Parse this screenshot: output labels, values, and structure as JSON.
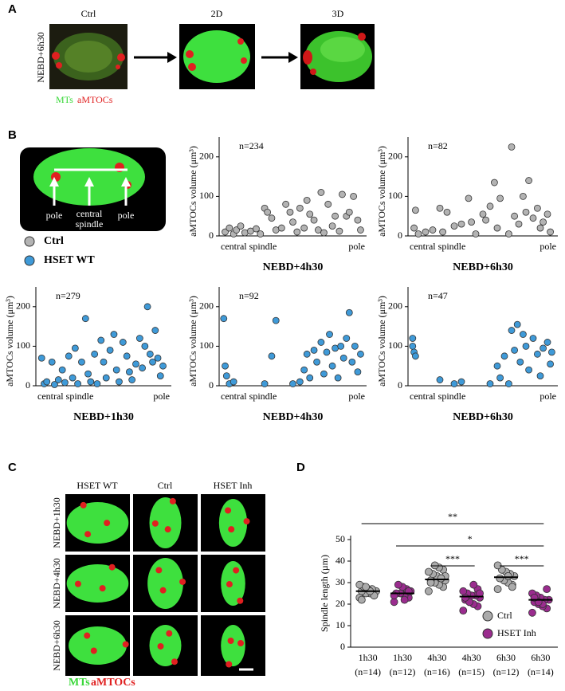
{
  "panels": {
    "a": "A",
    "b": "B",
    "c": "C",
    "d": "D"
  },
  "panel_a": {
    "row_label": "NEBD+6h30",
    "columns": [
      "Ctrl",
      "2D",
      "3D"
    ],
    "legend": [
      "MTs",
      "aMTOCs"
    ]
  },
  "panel_b_schematic": {
    "labels": [
      "pole",
      "central",
      "spindle",
      "pole"
    ]
  },
  "panel_b_legend": [
    {
      "name": "Ctrl",
      "color": "#b3b3b3"
    },
    {
      "name": "HSET WT",
      "color": "#3f9ad8"
    }
  ],
  "chart_data": [
    {
      "type": "scatter",
      "title": "NEBD+4h30",
      "annotation": "n=234",
      "y_label": "aMTOCs volume (μm³)",
      "x_labels": [
        "central spindle",
        "pole"
      ],
      "color": "#b3b3b3",
      "x": [
        0.02,
        0.05,
        0.08,
        0.1,
        0.13,
        0.16,
        0.2,
        0.24,
        0.27,
        0.3,
        0.32,
        0.35,
        0.38,
        0.42,
        0.45,
        0.48,
        0.5,
        0.53,
        0.55,
        0.58,
        0.6,
        0.62,
        0.65,
        0.68,
        0.7,
        0.72,
        0.75,
        0.78,
        0.8,
        0.83,
        0.85,
        0.88,
        0.9,
        0.93,
        0.96,
        0.98
      ],
      "y": [
        10,
        20,
        5,
        15,
        25,
        8,
        12,
        18,
        5,
        70,
        60,
        45,
        15,
        20,
        80,
        60,
        35,
        10,
        70,
        20,
        90,
        55,
        40,
        15,
        110,
        8,
        80,
        25,
        50,
        12,
        105,
        50,
        60,
        100,
        40,
        15
      ],
      "xlim": [
        0,
        1
      ],
      "ylim": [
        0,
        250
      ],
      "yticks": [
        0,
        100,
        200
      ]
    },
    {
      "type": "scatter",
      "title": "NEBD+6h30",
      "annotation": "n=82",
      "y_label": "aMTOCs volume (μm³)",
      "x_labels": [
        "central spindle",
        "pole"
      ],
      "color": "#b3b3b3",
      "x": [
        0.02,
        0.03,
        0.05,
        0.1,
        0.15,
        0.2,
        0.22,
        0.25,
        0.3,
        0.35,
        0.4,
        0.42,
        0.45,
        0.5,
        0.52,
        0.55,
        0.58,
        0.6,
        0.62,
        0.68,
        0.7,
        0.72,
        0.75,
        0.78,
        0.8,
        0.82,
        0.85,
        0.88,
        0.9,
        0.92,
        0.95,
        0.97
      ],
      "y": [
        20,
        65,
        5,
        10,
        15,
        70,
        10,
        60,
        25,
        30,
        95,
        35,
        5,
        55,
        40,
        75,
        135,
        20,
        95,
        5,
        225,
        50,
        30,
        100,
        60,
        140,
        45,
        70,
        20,
        35,
        55,
        10
      ],
      "xlim": [
        0,
        1
      ],
      "ylim": [
        0,
        250
      ],
      "yticks": [
        0,
        100,
        200
      ]
    },
    {
      "type": "scatter",
      "title": "NEBD+1h30",
      "annotation": "n=279",
      "y_label": "aMTOCs volume (μm³)",
      "x_labels": [
        "central spindle",
        "pole"
      ],
      "color": "#3f9ad8",
      "x": [
        0.02,
        0.04,
        0.06,
        0.1,
        0.12,
        0.15,
        0.18,
        0.2,
        0.23,
        0.26,
        0.28,
        0.3,
        0.33,
        0.36,
        0.38,
        0.4,
        0.43,
        0.45,
        0.48,
        0.5,
        0.52,
        0.55,
        0.58,
        0.6,
        0.62,
        0.65,
        0.68,
        0.7,
        0.72,
        0.75,
        0.78,
        0.8,
        0.82,
        0.84,
        0.86,
        0.88,
        0.9,
        0.92,
        0.94,
        0.96
      ],
      "y": [
        70,
        5,
        10,
        60,
        3,
        15,
        40,
        8,
        75,
        20,
        95,
        5,
        60,
        170,
        30,
        10,
        80,
        5,
        115,
        60,
        20,
        90,
        130,
        40,
        10,
        110,
        75,
        35,
        15,
        55,
        120,
        45,
        100,
        200,
        80,
        60,
        140,
        70,
        25,
        50
      ],
      "xlim": [
        0,
        1
      ],
      "ylim": [
        0,
        250
      ],
      "yticks": [
        0,
        100,
        200
      ]
    },
    {
      "type": "scatter",
      "title": "NEBD+4h30",
      "annotation": "n=92",
      "y_label": "aMTOCs volume (μm³)",
      "x_labels": [
        "central spindle",
        "pole"
      ],
      "color": "#3f9ad8",
      "x": [
        0.01,
        0.02,
        0.03,
        0.05,
        0.08,
        0.3,
        0.35,
        0.38,
        0.5,
        0.55,
        0.58,
        0.6,
        0.62,
        0.65,
        0.67,
        0.7,
        0.72,
        0.74,
        0.76,
        0.78,
        0.8,
        0.82,
        0.84,
        0.86,
        0.88,
        0.9,
        0.92,
        0.94,
        0.96,
        0.98
      ],
      "y": [
        170,
        50,
        25,
        5,
        10,
        5,
        75,
        165,
        5,
        10,
        40,
        80,
        20,
        90,
        60,
        110,
        30,
        85,
        130,
        50,
        95,
        20,
        100,
        70,
        120,
        185,
        60,
        100,
        35,
        80
      ],
      "xlim": [
        0,
        1
      ],
      "ylim": [
        0,
        250
      ],
      "yticks": [
        0,
        100,
        200
      ]
    },
    {
      "type": "scatter",
      "title": "NEBD+6h30",
      "annotation": "n=47",
      "y_label": "aMTOCs volume (μm³)",
      "x_labels": [
        "central spindle",
        "pole"
      ],
      "color": "#3f9ad8",
      "x": [
        0.01,
        0.01,
        0.02,
        0.03,
        0.2,
        0.3,
        0.35,
        0.55,
        0.6,
        0.62,
        0.65,
        0.68,
        0.7,
        0.72,
        0.74,
        0.76,
        0.78,
        0.8,
        0.82,
        0.85,
        0.88,
        0.9,
        0.92,
        0.95,
        0.97,
        0.98
      ],
      "y": [
        120,
        100,
        85,
        75,
        15,
        5,
        10,
        5,
        50,
        20,
        75,
        5,
        140,
        90,
        155,
        60,
        130,
        100,
        40,
        120,
        80,
        25,
        95,
        110,
        55,
        85
      ],
      "xlim": [
        0,
        1
      ],
      "ylim": [
        0,
        250
      ],
      "yticks": [
        0,
        100,
        200
      ]
    },
    {
      "type": "strip",
      "y_label": "Spindle length (µm)",
      "categories": [
        "1h30",
        "1h30",
        "4h30",
        "4h30",
        "6h30",
        "6h30"
      ],
      "category_notes": [
        "(n=14)",
        "(n=12)",
        "(n=16)",
        "(n=15)",
        "(n=12)",
        "(n=14)"
      ],
      "series": [
        {
          "name": "Ctrl",
          "color": "#ababab",
          "values": [
            [
              23,
              24,
              25,
              25,
              26,
              26,
              27,
              27,
              28,
              29,
              24,
              26,
              28,
              22
            ],
            null,
            [
              26,
              28,
              29,
              30,
              31,
              31,
              32,
              33,
              34,
              35,
              36,
              37,
              38,
              30,
              33,
              32
            ],
            null,
            [
              27,
              29,
              30,
              31,
              32,
              33,
              34,
              35,
              36,
              38,
              28,
              33
            ],
            null
          ],
          "means": [
            26,
            null,
            31.5,
            null,
            32.5,
            null
          ]
        },
        {
          "name": "HSET Inh",
          "color": "#9a2c8e",
          "values": [
            null,
            [
              21,
              23,
              24,
              25,
              25,
              26,
              27,
              28,
              29,
              24,
              26,
              22
            ],
            null,
            [
              17,
              19,
              20,
              21,
              22,
              23,
              24,
              24,
              25,
              26,
              27,
              29,
              21,
              23,
              25
            ],
            null,
            [
              16,
              18,
              19,
              20,
              21,
              22,
              22,
              23,
              24,
              25,
              27,
              20,
              21,
              23
            ]
          ],
          "means": [
            null,
            25,
            null,
            23.5,
            null,
            22
          ]
        }
      ],
      "ylim": [
        0,
        50
      ],
      "yticks": [
        0,
        10,
        20,
        30,
        40,
        50
      ],
      "significance": [
        {
          "from": 0,
          "to": 5,
          "label": "**"
        },
        {
          "from": 1,
          "to": 5,
          "label": "*"
        },
        {
          "from": 2,
          "to": 3,
          "label": "***"
        },
        {
          "from": 4,
          "to": 5,
          "label": "***"
        }
      ]
    }
  ],
  "panel_c": {
    "columns": [
      "HSET WT",
      "Ctrl",
      "HSET Inh"
    ],
    "rows": [
      "NEBD+1h30",
      "NEBD+4h30",
      "NEBD+6h30"
    ],
    "legend": [
      "MTs",
      "aMTOCs"
    ]
  }
}
